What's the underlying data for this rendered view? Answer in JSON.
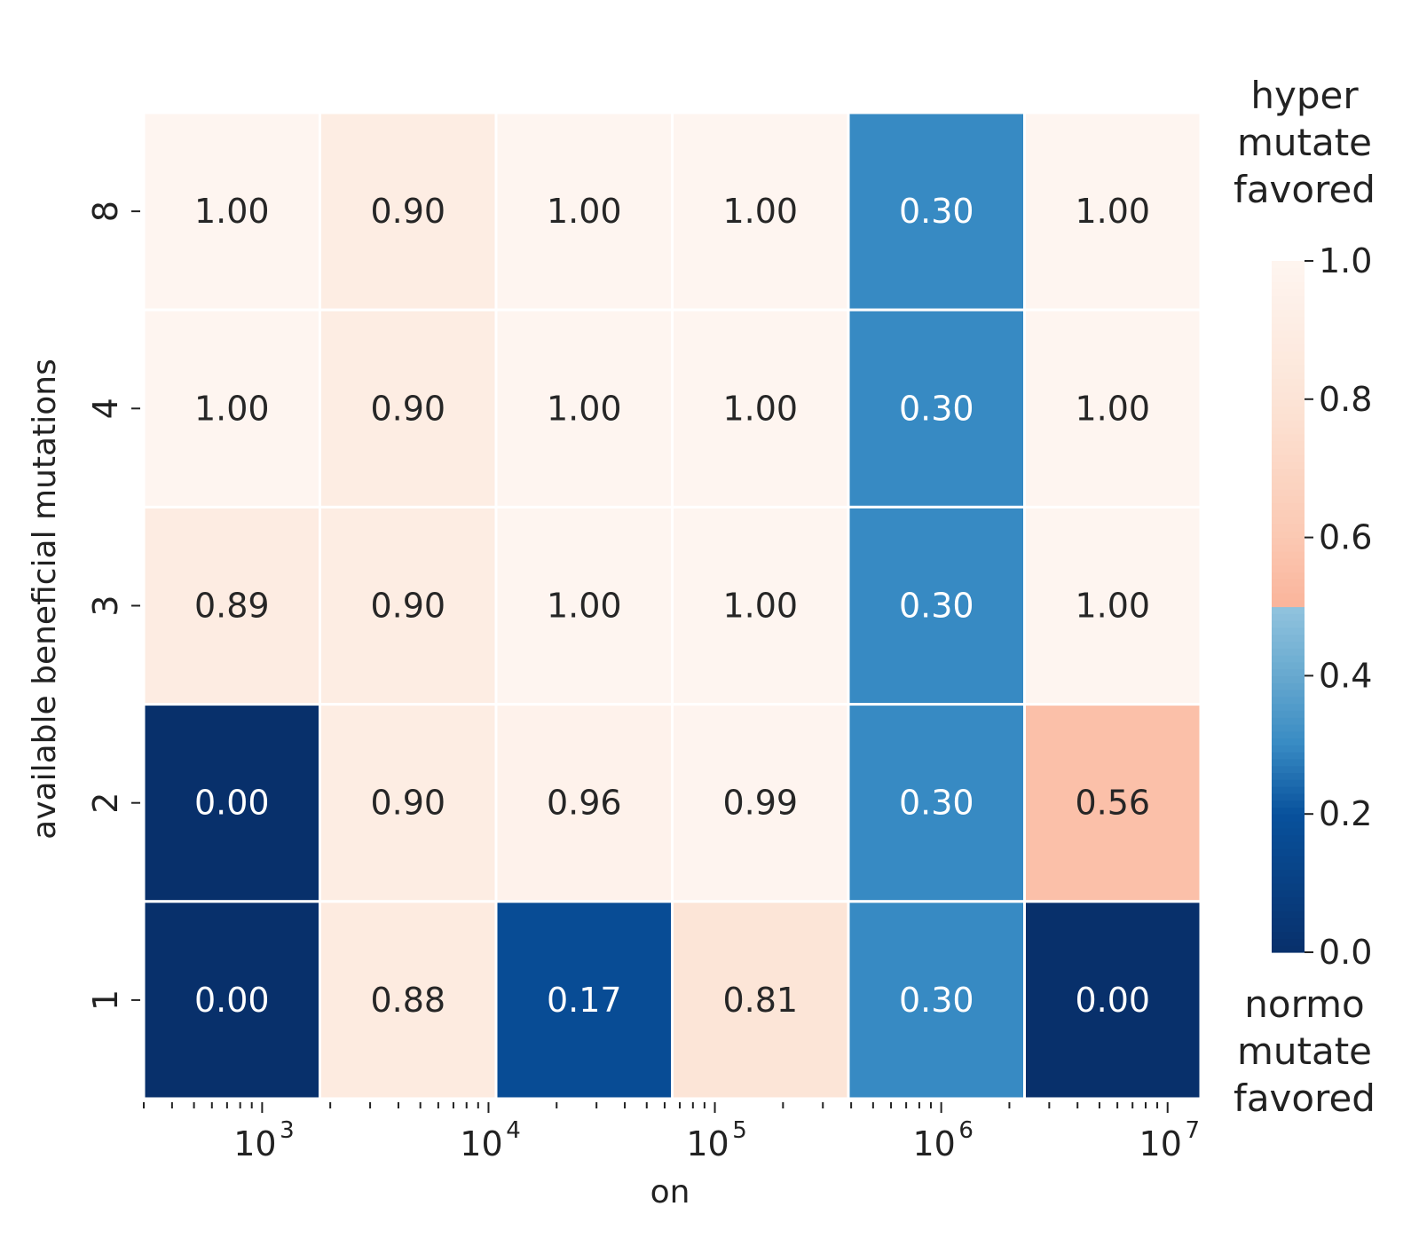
{
  "chart_data": {
    "type": "heatmap",
    "xlabel": "on",
    "ylabel": "available beneficial mutations",
    "y_categories": [
      "8",
      "4",
      "3",
      "2",
      "1"
    ],
    "x_columns": 6,
    "values": [
      [
        1.0,
        0.9,
        1.0,
        1.0,
        0.3,
        1.0
      ],
      [
        1.0,
        0.9,
        1.0,
        1.0,
        0.3,
        1.0
      ],
      [
        0.89,
        0.9,
        1.0,
        1.0,
        0.3,
        1.0
      ],
      [
        0.0,
        0.9,
        0.96,
        0.99,
        0.3,
        0.56
      ],
      [
        0.0,
        0.88,
        0.17,
        0.81,
        0.3,
        0.0
      ]
    ],
    "value_labels": [
      [
        "1.00",
        "0.90",
        "1.00",
        "1.00",
        "0.30",
        "1.00"
      ],
      [
        "1.00",
        "0.90",
        "1.00",
        "1.00",
        "0.30",
        "1.00"
      ],
      [
        "0.89",
        "0.90",
        "1.00",
        "1.00",
        "0.30",
        "1.00"
      ],
      [
        "0.00",
        "0.90",
        "0.96",
        "0.99",
        "0.30",
        "0.56"
      ],
      [
        "0.00",
        "0.88",
        "0.17",
        "0.81",
        "0.30",
        "0.00"
      ]
    ],
    "x_axis": {
      "scale": "log",
      "range": [
        300,
        14000000
      ],
      "major_ticks": [
        {
          "value": 1000,
          "base": "10",
          "exponent": "3"
        },
        {
          "value": 10000,
          "base": "10",
          "exponent": "4"
        },
        {
          "value": 100000,
          "base": "10",
          "exponent": "5"
        },
        {
          "value": 1000000,
          "base": "10",
          "exponent": "6"
        },
        {
          "value": 10000000,
          "base": "10",
          "exponent": "7"
        }
      ]
    },
    "colorbar": {
      "range": [
        0,
        1
      ],
      "ticks": [
        "0.0",
        "0.2",
        "0.4",
        "0.6",
        "0.8",
        "1.0"
      ],
      "top_label": [
        "hyper",
        "mutate",
        "favored"
      ],
      "bottom_label": [
        "normo",
        "mutate",
        "favored"
      ],
      "split_value": 0.5
    },
    "colors": {
      "cell_border": "#ffffff",
      "text_dark": "#262626",
      "text_light": "#ffffff"
    }
  }
}
